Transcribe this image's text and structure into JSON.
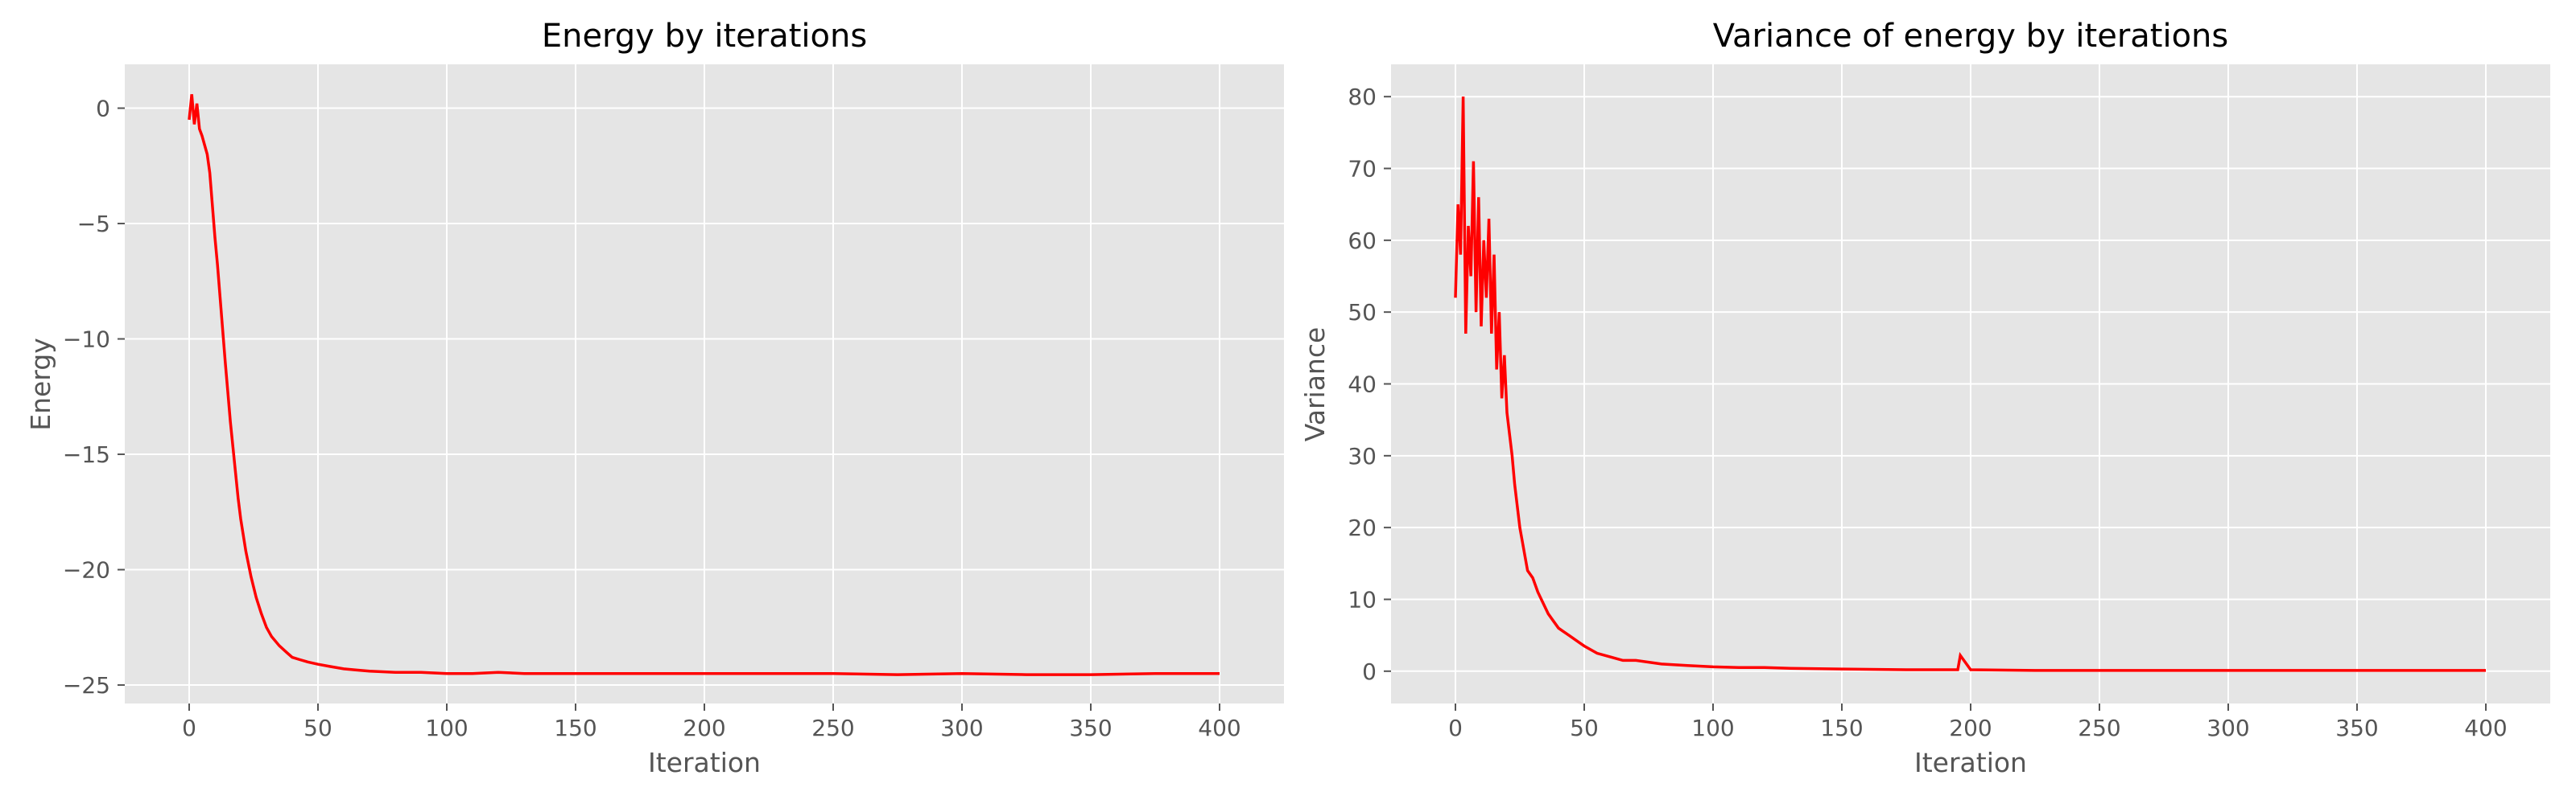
{
  "chart_data": [
    {
      "type": "line",
      "title": "Energy by iterations",
      "xlabel": "Iteration",
      "ylabel": "Energy",
      "xlim": [
        -25,
        425
      ],
      "ylim": [
        -25.8,
        1.9
      ],
      "xticks": [
        0,
        50,
        100,
        150,
        200,
        250,
        300,
        350,
        400
      ],
      "yticks": [
        0,
        -5,
        -10,
        -15,
        -20,
        -25
      ],
      "grid": true,
      "series": [
        {
          "color": "#ff0000",
          "x": [
            0,
            1,
            2,
            3,
            4,
            5,
            6,
            7,
            8,
            9,
            10,
            11,
            12,
            13,
            14,
            15,
            16,
            17,
            18,
            19,
            20,
            22,
            24,
            26,
            28,
            30,
            32,
            35,
            38,
            40,
            43,
            46,
            50,
            55,
            60,
            65,
            70,
            80,
            90,
            100,
            110,
            120,
            130,
            140,
            150,
            175,
            200,
            225,
            250,
            275,
            300,
            325,
            350,
            375,
            400
          ],
          "y": [
            -0.5,
            0.6,
            -0.7,
            0.2,
            -0.9,
            -1.2,
            -1.6,
            -2.0,
            -2.8,
            -4.2,
            -5.6,
            -6.8,
            -8.2,
            -9.6,
            -11.0,
            -12.3,
            -13.6,
            -14.7,
            -15.8,
            -16.9,
            -17.8,
            -19.2,
            -20.3,
            -21.2,
            -21.9,
            -22.5,
            -22.9,
            -23.3,
            -23.6,
            -23.8,
            -23.9,
            -24.0,
            -24.1,
            -24.2,
            -24.3,
            -24.35,
            -24.4,
            -24.45,
            -24.45,
            -24.5,
            -24.5,
            -24.45,
            -24.5,
            -24.5,
            -24.5,
            -24.5,
            -24.5,
            -24.5,
            -24.5,
            -24.55,
            -24.5,
            -24.55,
            -24.55,
            -24.5,
            -24.5
          ]
        }
      ]
    },
    {
      "type": "line",
      "title": "Variance of energy by iterations",
      "xlabel": "Iteration",
      "ylabel": "Variance",
      "xlim": [
        -25,
        425
      ],
      "ylim": [
        -4.5,
        84.5
      ],
      "xticks": [
        0,
        50,
        100,
        150,
        200,
        250,
        300,
        350,
        400
      ],
      "yticks": [
        0,
        10,
        20,
        30,
        40,
        50,
        60,
        70,
        80
      ],
      "grid": true,
      "series": [
        {
          "color": "#ff0000",
          "x": [
            0,
            1,
            2,
            3,
            4,
            5,
            6,
            7,
            8,
            9,
            10,
            11,
            12,
            13,
            14,
            15,
            16,
            17,
            18,
            19,
            20,
            21,
            22,
            23,
            24,
            25,
            26,
            27,
            28,
            30,
            32,
            34,
            36,
            38,
            40,
            42,
            44,
            46,
            48,
            50,
            55,
            60,
            65,
            70,
            80,
            90,
            100,
            110,
            120,
            130,
            150,
            175,
            195,
            196,
            200,
            225,
            250,
            275,
            300,
            325,
            350,
            375,
            400
          ],
          "y": [
            52,
            65,
            58,
            80,
            47,
            62,
            55,
            71,
            50,
            66,
            48,
            60,
            52,
            63,
            47,
            58,
            42,
            50,
            38,
            44,
            36,
            33,
            30,
            26,
            23,
            20,
            18,
            16,
            14,
            13,
            11,
            9.5,
            8,
            7,
            6,
            5.5,
            5,
            4.5,
            4,
            3.5,
            2.5,
            2,
            1.5,
            1.5,
            1.0,
            0.8,
            0.6,
            0.5,
            0.5,
            0.4,
            0.3,
            0.2,
            0.2,
            2.2,
            0.2,
            0.1,
            0.1,
            0.1,
            0.1,
            0.1,
            0.1,
            0.1,
            0.1
          ]
        }
      ]
    }
  ]
}
